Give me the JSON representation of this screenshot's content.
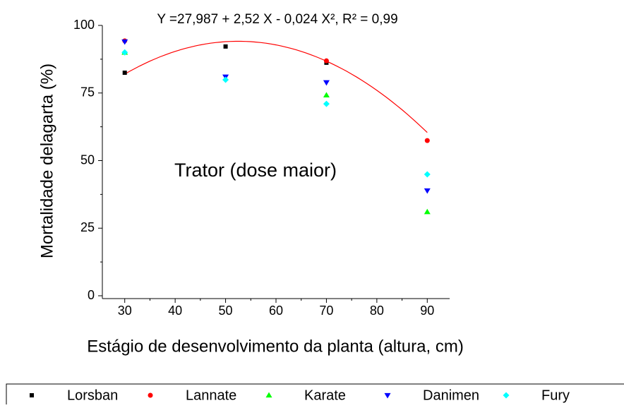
{
  "chart_data": {
    "type": "scatter",
    "annotations": [
      "Y =27,987 + 2,52 X - 0,024 X², R² = 0,99",
      "Trator (dose maior)"
    ],
    "xlabel": "Estágio de desenvolvimento da planta (altura, cm)",
    "ylabel": "Mortalidade delagarta (%)",
    "x": [
      30,
      50,
      70,
      90
    ],
    "series": [
      {
        "name": "Lorsban",
        "color": "#000000",
        "marker": "square",
        "values": [
          82.5,
          92.2,
          86.2,
          null
        ]
      },
      {
        "name": "Lannate",
        "color": "#ff0000",
        "marker": "circle",
        "values": [
          94.3,
          null,
          86.9,
          57.4
        ]
      },
      {
        "name": "Karate",
        "color": "#00ff00",
        "marker": "triangle-up",
        "values": [
          90,
          null,
          74.2,
          31
        ]
      },
      {
        "name": "Danimen",
        "color": "#0000ff",
        "marker": "triangle-down",
        "values": [
          94,
          81,
          78.9,
          38.9
        ]
      },
      {
        "name": "Fury",
        "color": "#00ffff",
        "marker": "diamond",
        "values": [
          90,
          79.9,
          71,
          44.9
        ]
      }
    ],
    "fit": {
      "intercept": 27.987,
      "linear": 2.52,
      "quadratic": -0.024,
      "color": "#ff0000"
    },
    "xlim": [
      25,
      95
    ],
    "xticks": [
      30,
      40,
      50,
      60,
      70,
      80,
      90
    ],
    "ylim": [
      0,
      100
    ],
    "yticks": [
      0,
      25,
      50,
      75,
      100
    ],
    "legend": "bottom"
  }
}
